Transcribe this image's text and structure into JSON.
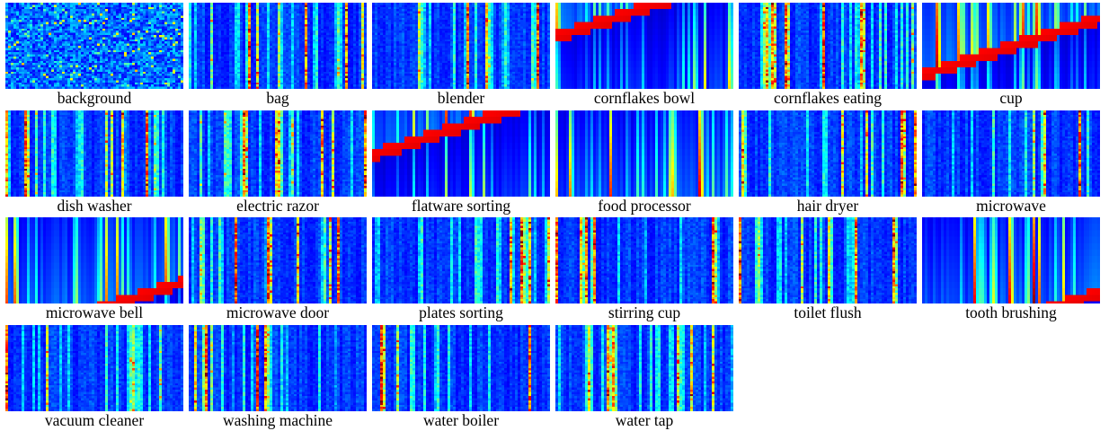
{
  "figure": {
    "colormap": "jet",
    "panels": [
      {
        "label": "background",
        "style": "noisy"
      },
      {
        "label": "bag",
        "style": "stripes"
      },
      {
        "label": "blender",
        "style": "stripes"
      },
      {
        "label": "cornflakes bowl",
        "style": "blocky"
      },
      {
        "label": "cornflakes eating",
        "style": "stripes"
      },
      {
        "label": "cup",
        "style": "blocky"
      },
      {
        "label": "dish washer",
        "style": "stripes"
      },
      {
        "label": "electric razor",
        "style": "stripes"
      },
      {
        "label": "flatware sorting",
        "style": "blocky"
      },
      {
        "label": "food processor",
        "style": "blocky"
      },
      {
        "label": "hair dryer",
        "style": "stripes"
      },
      {
        "label": "microwave",
        "style": "stripes"
      },
      {
        "label": "microwave bell",
        "style": "blocky"
      },
      {
        "label": "microwave door",
        "style": "stripes"
      },
      {
        "label": "plates sorting",
        "style": "stripes"
      },
      {
        "label": "stirring cup",
        "style": "stripes"
      },
      {
        "label": "toilet flush",
        "style": "stripes"
      },
      {
        "label": "tooth brushing",
        "style": "blocky"
      },
      {
        "label": "vacuum cleaner",
        "style": "stripes"
      },
      {
        "label": "washing machine",
        "style": "stripes"
      },
      {
        "label": "water boiler",
        "style": "stripes"
      },
      {
        "label": "water tap",
        "style": "stripes"
      }
    ]
  }
}
